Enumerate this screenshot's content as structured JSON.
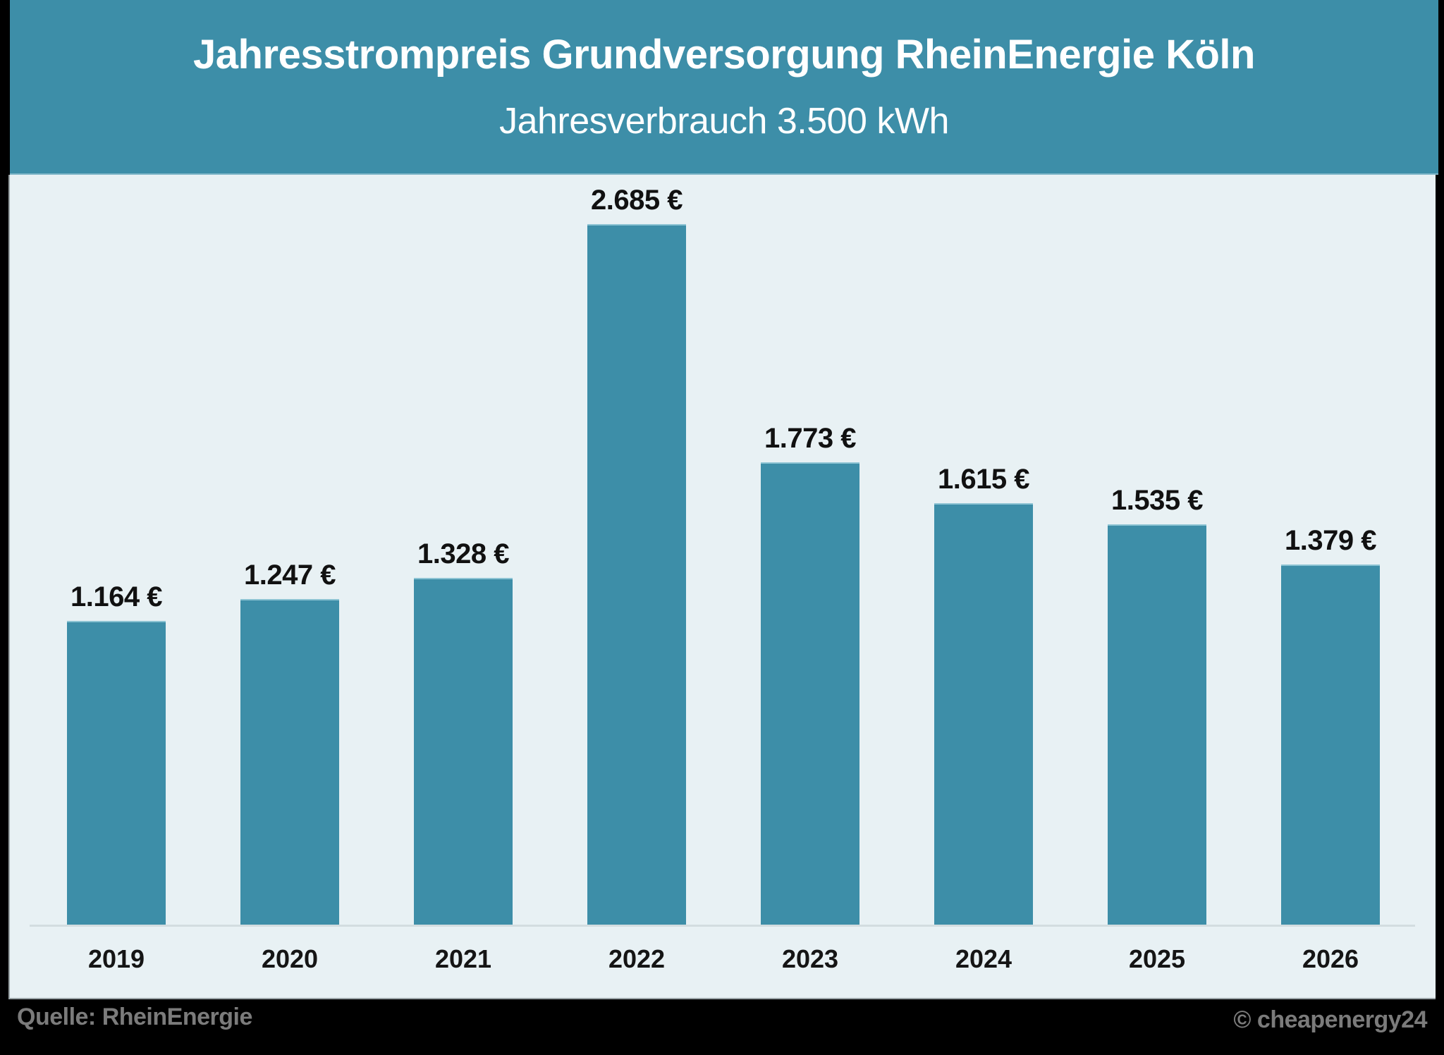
{
  "header": {
    "title": "Jahresstrompreis Grundversorgung RheinEnergie Köln",
    "subtitle": "Jahresverbrauch 3.500 kWh"
  },
  "footer": {
    "source": "Quelle: RheinEnergie",
    "copyright": "© cheapenergy24"
  },
  "colors": {
    "header_bg": "#3d8ea8",
    "bar": "#3d8ea8",
    "panel_bg": "#e8f1f4",
    "page_bg": "#000000",
    "footer_text": "#7b7b7b"
  },
  "chart_data": {
    "type": "bar",
    "title": "Jahresstrompreis Grundversorgung RheinEnergie Köln",
    "subtitle": "Jahresverbrauch 3.500 kWh",
    "xlabel": "",
    "ylabel": "",
    "unit": "€",
    "categories": [
      "2019",
      "2020",
      "2021",
      "2022",
      "2023",
      "2024",
      "2025",
      "2026"
    ],
    "values": [
      1164,
      1247,
      1328,
      2685,
      1773,
      1615,
      1535,
      1379
    ],
    "value_labels": [
      "1.164 €",
      "1.247 €",
      "1.328 €",
      "2.685 €",
      "1.773 €",
      "1.615 €",
      "1.535 €",
      "1.379 €"
    ],
    "ylim": [
      0,
      2685
    ],
    "grid": false,
    "y_axis_visible": false,
    "legend": null,
    "data_labels": true
  }
}
